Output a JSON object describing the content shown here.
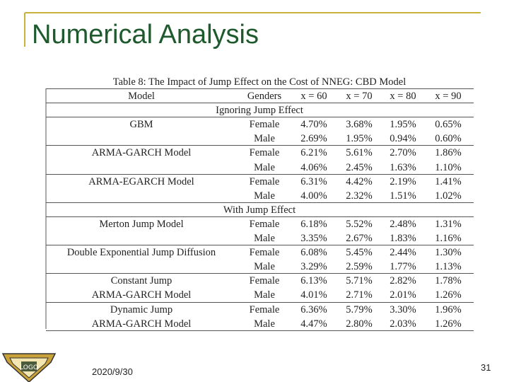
{
  "header": {
    "title": "Numerical Analysis"
  },
  "table": {
    "caption": "Table 8: The Impact of Jump Effect on the Cost of NNEG: CBD Model",
    "columns": [
      "Model",
      "Genders",
      "x = 60",
      "x = 70",
      "x = 80",
      "x = 90"
    ],
    "sections": [
      {
        "label": "Ignoring Jump Effect",
        "groups": [
          {
            "rows": [
              {
                "model": "GBM",
                "gender": "Female",
                "values": [
                  "4.70%",
                  "3.68%",
                  "1.95%",
                  "0.65%"
                ]
              },
              {
                "gender": "Male",
                "values": [
                  "2.69%",
                  "1.95%",
                  "0.94%",
                  "0.60%"
                ]
              }
            ]
          },
          {
            "rows": [
              {
                "model": "ARMA-GARCH Model",
                "gender": "Female",
                "values": [
                  "6.21%",
                  "5.61%",
                  "2.70%",
                  "1.86%"
                ]
              },
              {
                "gender": "Male",
                "values": [
                  "4.06%",
                  "2.45%",
                  "1.63%",
                  "1.10%"
                ]
              }
            ]
          },
          {
            "rows": [
              {
                "model": "ARMA-EGARCH Model",
                "gender": "Female",
                "values": [
                  "6.31%",
                  "4.42%",
                  "2.19%",
                  "1.41%"
                ]
              },
              {
                "gender": "Male",
                "values": [
                  "4.00%",
                  "2.32%",
                  "1.51%",
                  "1.02%"
                ]
              }
            ]
          }
        ]
      },
      {
        "label": "With Jump Effect",
        "groups": [
          {
            "rows": [
              {
                "model": "Merton Jump Model",
                "gender": "Female",
                "values": [
                  "6.18%",
                  "5.52%",
                  "2.48%",
                  "1.31%"
                ]
              },
              {
                "gender": "Male",
                "values": [
                  "3.35%",
                  "2.67%",
                  "1.83%",
                  "1.16%"
                ]
              }
            ]
          },
          {
            "rows": [
              {
                "model": "Double Exponential Jump Diffusion",
                "gender": "Female",
                "values": [
                  "6.08%",
                  "5.45%",
                  "2.44%",
                  "1.30%"
                ]
              },
              {
                "gender": "Male",
                "values": [
                  "3.29%",
                  "2.59%",
                  "1.77%",
                  "1.13%"
                ]
              }
            ]
          },
          {
            "rows": [
              {
                "model": "Constant Jump",
                "gender": "Female",
                "values": [
                  "6.13%",
                  "5.71%",
                  "2.82%",
                  "1.78%"
                ]
              },
              {
                "model": "ARMA-GARCH Model",
                "gender": "Male",
                "values": [
                  "4.01%",
                  "2.71%",
                  "2.01%",
                  "1.26%"
                ]
              }
            ]
          },
          {
            "rows": [
              {
                "model": "Dynamic Jump",
                "gender": "Female",
                "values": [
                  "6.36%",
                  "5.79%",
                  "3.30%",
                  "1.96%"
                ]
              },
              {
                "model": "ARMA-GARCH Model",
                "gender": "Male",
                "values": [
                  "4.47%",
                  "2.80%",
                  "2.03%",
                  "1.26%"
                ]
              }
            ]
          }
        ]
      }
    ]
  },
  "footer": {
    "date": "2020/9/30",
    "page": "31"
  }
}
